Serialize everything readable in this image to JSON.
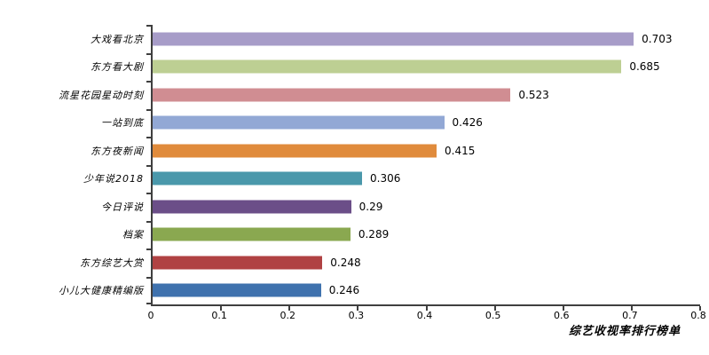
{
  "chart_data": {
    "type": "bar",
    "orientation": "horizontal",
    "title": "综艺收视率排行榜单",
    "categories": [
      "大戏看北京",
      "东方看大剧",
      "流星花园星动时刻",
      "一站到底",
      "东方夜新闻",
      "少年说2018",
      "今日评说",
      "档案",
      "东方综艺大赏",
      "小儿大健康精编版"
    ],
    "values": [
      0.703,
      0.685,
      0.523,
      0.426,
      0.415,
      0.306,
      0.29,
      0.289,
      0.248,
      0.246
    ],
    "value_labels": [
      "0.703",
      "0.685",
      "0.523",
      "0.426",
      "0.415",
      "0.306",
      "0.29",
      "0.289",
      "0.248",
      "0.246"
    ],
    "bar_colors": [
      "#a79cc8",
      "#bdcf93",
      "#d08d92",
      "#92a8d5",
      "#e08b3c",
      "#4a98ab",
      "#6b4e88",
      "#8aa850",
      "#b04243",
      "#3f72ae"
    ],
    "xlim": [
      0,
      0.8
    ],
    "xticks": [
      "0",
      "0.1",
      "0.2",
      "0.3",
      "0.4",
      "0.5",
      "0.6",
      "0.7",
      "0.8"
    ],
    "grid": false,
    "legend": false,
    "axis_color": "#3f3f3f"
  }
}
